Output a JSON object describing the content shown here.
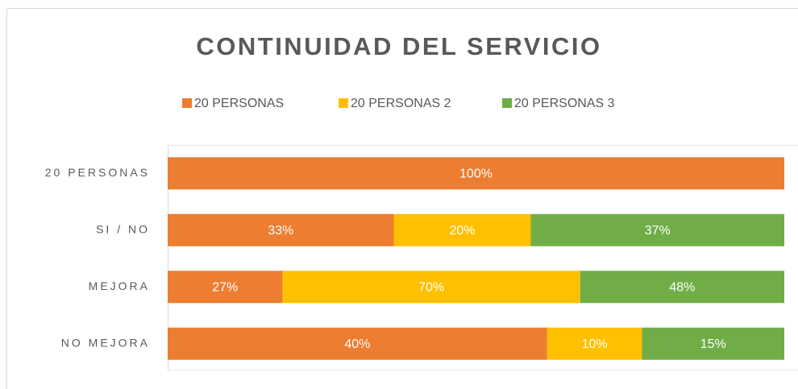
{
  "chart_data": {
    "type": "bar",
    "orientation": "horizontal",
    "stacking": "percent",
    "title": "CONTINUIDAD DEL SERVICIO",
    "categories": [
      "20 PERSONAS",
      "SI / NO",
      "MEJORA",
      "NO MEJORA"
    ],
    "series": [
      {
        "name": "20 PERSONAS",
        "color": "#ed7d31",
        "values": [
          100,
          33,
          27,
          40
        ],
        "value_labels": [
          "100%",
          "33%",
          "27%",
          "40%"
        ]
      },
      {
        "name": "20 PERSONAS 2",
        "color": "#ffc000",
        "values": [
          null,
          20,
          70,
          10
        ],
        "value_labels": [
          null,
          "20%",
          "70%",
          "10%"
        ]
      },
      {
        "name": "20 PERSONAS 3",
        "color": "#70ad47",
        "values": [
          null,
          37,
          48,
          15
        ],
        "value_labels": [
          null,
          "37%",
          "48%",
          "15%"
        ]
      }
    ],
    "legend": "top"
  }
}
